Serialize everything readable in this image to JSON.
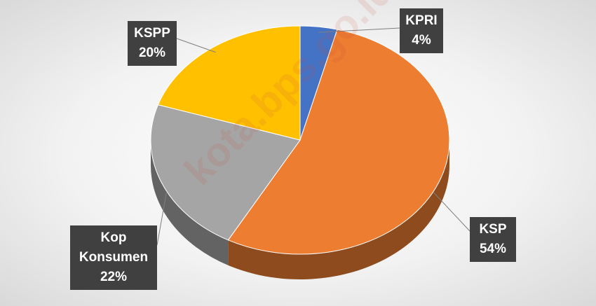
{
  "chart_data": {
    "type": "pie3d",
    "categories": [
      "KPRI",
      "KSP",
      "Kop Konsumen",
      "KSPP"
    ],
    "values": [
      4,
      54,
      22,
      20
    ],
    "value_labels": [
      "4%",
      "54%",
      "22%",
      "20%"
    ],
    "colors": [
      "#4472c4",
      "#ed7d31",
      "#a5a5a5",
      "#ffc000"
    ],
    "watermark": "kota.bps.go.id"
  }
}
